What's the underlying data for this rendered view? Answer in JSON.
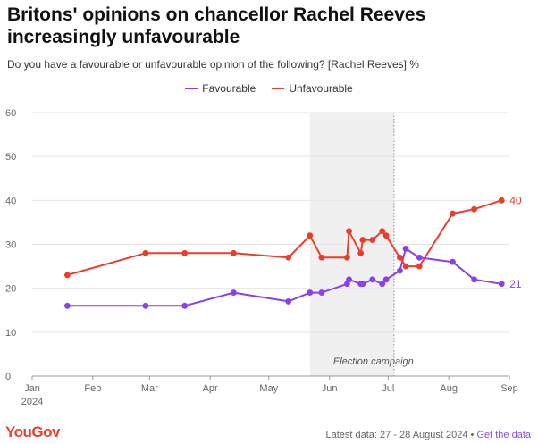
{
  "header": {
    "title": "Britons' opinions on chancellor Rachel Reeves increasingly unfavourable",
    "subtitle": "Do you have a favourable or unfavourable opinion of the following? [Rachel Reeves] %"
  },
  "footer": {
    "logo": "YouGov",
    "note": "Latest data: 27 - 28 August 2024 •",
    "link": "Get the data"
  },
  "colors": {
    "favourable": "#8c3ff0",
    "unfavourable": "#ec3d2a",
    "campaign_band": "#f0f0f0"
  },
  "chart_data": {
    "type": "line",
    "title": "Britons' opinions on chancellor Rachel Reeves increasingly unfavourable",
    "xlabel": "",
    "ylabel": "",
    "ylim": [
      0,
      60
    ],
    "yticks": [
      0,
      10,
      20,
      30,
      40,
      50,
      60
    ],
    "xlim": [
      "2024-01-01",
      "2024-09-01"
    ],
    "xticks": [
      {
        "date": "2024-01-01",
        "label": "Jan",
        "sublabel": "2024"
      },
      {
        "date": "2024-02-01",
        "label": "Feb"
      },
      {
        "date": "2024-03-01",
        "label": "Mar"
      },
      {
        "date": "2024-04-01",
        "label": "Apr"
      },
      {
        "date": "2024-05-01",
        "label": "May"
      },
      {
        "date": "2024-06-01",
        "label": "Jun"
      },
      {
        "date": "2024-07-01",
        "label": "Jul"
      },
      {
        "date": "2024-08-01",
        "label": "Aug"
      },
      {
        "date": "2024-09-01",
        "label": "Sep"
      }
    ],
    "grid": true,
    "legend": "top-center",
    "shaded_region": {
      "start": "2024-05-22",
      "end": "2024-07-04",
      "label": "Election campaign"
    },
    "series": [
      {
        "name": "Favourable",
        "color": "#8c3ff0",
        "end_label": "21",
        "points": [
          {
            "x": "2024-01-19",
            "y": 16
          },
          {
            "x": "2024-02-28",
            "y": 16
          },
          {
            "x": "2024-03-19",
            "y": 16
          },
          {
            "x": "2024-04-13",
            "y": 19
          },
          {
            "x": "2024-05-11",
            "y": 17
          },
          {
            "x": "2024-05-22",
            "y": 19
          },
          {
            "x": "2024-05-28",
            "y": 19
          },
          {
            "x": "2024-06-10",
            "y": 21
          },
          {
            "x": "2024-06-11",
            "y": 22
          },
          {
            "x": "2024-06-17",
            "y": 21
          },
          {
            "x": "2024-06-18",
            "y": 21
          },
          {
            "x": "2024-06-23",
            "y": 22
          },
          {
            "x": "2024-06-28",
            "y": 21
          },
          {
            "x": "2024-06-30",
            "y": 22
          },
          {
            "x": "2024-07-07",
            "y": 24
          },
          {
            "x": "2024-07-10",
            "y": 29
          },
          {
            "x": "2024-07-17",
            "y": 27
          },
          {
            "x": "2024-08-03",
            "y": 26
          },
          {
            "x": "2024-08-14",
            "y": 22
          },
          {
            "x": "2024-08-28",
            "y": 21
          }
        ]
      },
      {
        "name": "Unfavourable",
        "color": "#ec3d2a",
        "end_label": "40",
        "points": [
          {
            "x": "2024-01-19",
            "y": 23
          },
          {
            "x": "2024-02-28",
            "y": 28
          },
          {
            "x": "2024-03-19",
            "y": 28
          },
          {
            "x": "2024-04-13",
            "y": 28
          },
          {
            "x": "2024-05-11",
            "y": 27
          },
          {
            "x": "2024-05-22",
            "y": 32
          },
          {
            "x": "2024-05-28",
            "y": 27
          },
          {
            "x": "2024-06-10",
            "y": 27
          },
          {
            "x": "2024-06-11",
            "y": 33
          },
          {
            "x": "2024-06-17",
            "y": 28
          },
          {
            "x": "2024-06-18",
            "y": 31
          },
          {
            "x": "2024-06-23",
            "y": 31
          },
          {
            "x": "2024-06-28",
            "y": 33
          },
          {
            "x": "2024-06-30",
            "y": 32
          },
          {
            "x": "2024-07-07",
            "y": 27
          },
          {
            "x": "2024-07-10",
            "y": 25
          },
          {
            "x": "2024-07-17",
            "y": 25
          },
          {
            "x": "2024-08-03",
            "y": 37
          },
          {
            "x": "2024-08-14",
            "y": 38
          },
          {
            "x": "2024-08-28",
            "y": 40
          }
        ]
      }
    ]
  }
}
